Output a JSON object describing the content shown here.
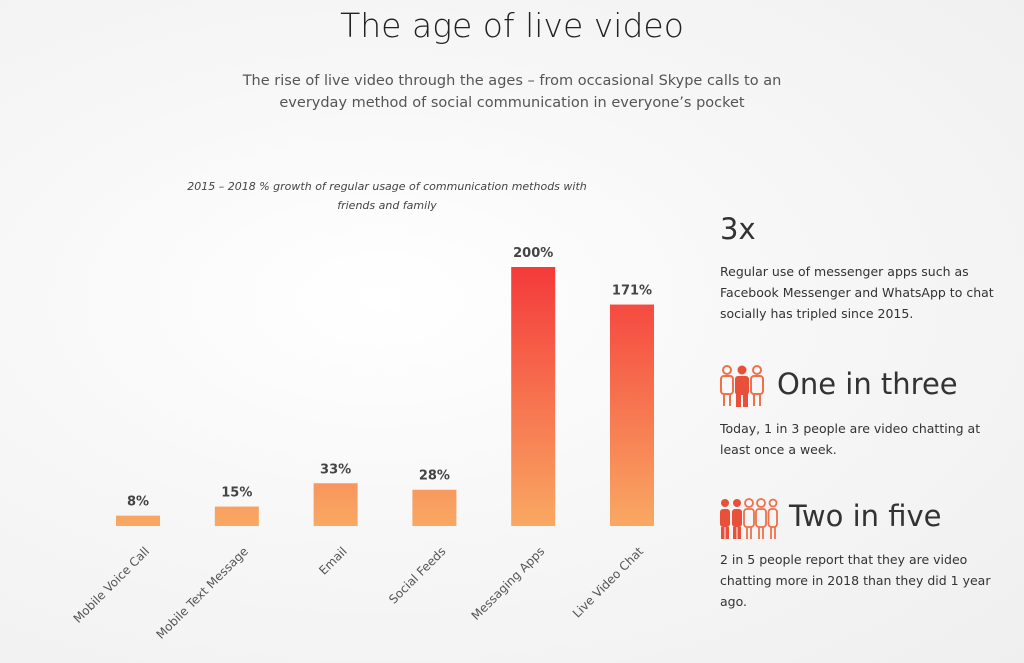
{
  "header": {
    "title": "The age of live video",
    "subtitle": "The rise of live video through the ages – from occasional Skype calls to an everyday method of social communication in everyone’s pocket"
  },
  "chart_data": {
    "type": "bar",
    "title": "2015 – 2018 % growth of regular usage of communication methods with friends and family",
    "categories": [
      "Mobile Voice Call",
      "Mobile Text Message",
      "Email",
      "Social Feeds",
      "Messaging Apps",
      "Live Video Chat"
    ],
    "values": [
      8,
      15,
      33,
      28,
      200,
      171
    ],
    "value_labels": [
      "8%",
      "15%",
      "33%",
      "28%",
      "200%",
      "171%"
    ],
    "gradient": [
      "#f43a3a",
      "#f9a863"
    ]
  },
  "stats": [
    {
      "headline": "3x",
      "text": "Regular use of messenger apps such as Facebook Messenger and WhatsApp to chat socially has tripled since 2015."
    },
    {
      "headline": "One in three",
      "text": "Today, 1 in 3 people are video chatting at least once a week."
    },
    {
      "headline": "Two in five",
      "text": "2 in 5 people report that they are video chatting more in 2018 than they did 1 year ago."
    }
  ]
}
